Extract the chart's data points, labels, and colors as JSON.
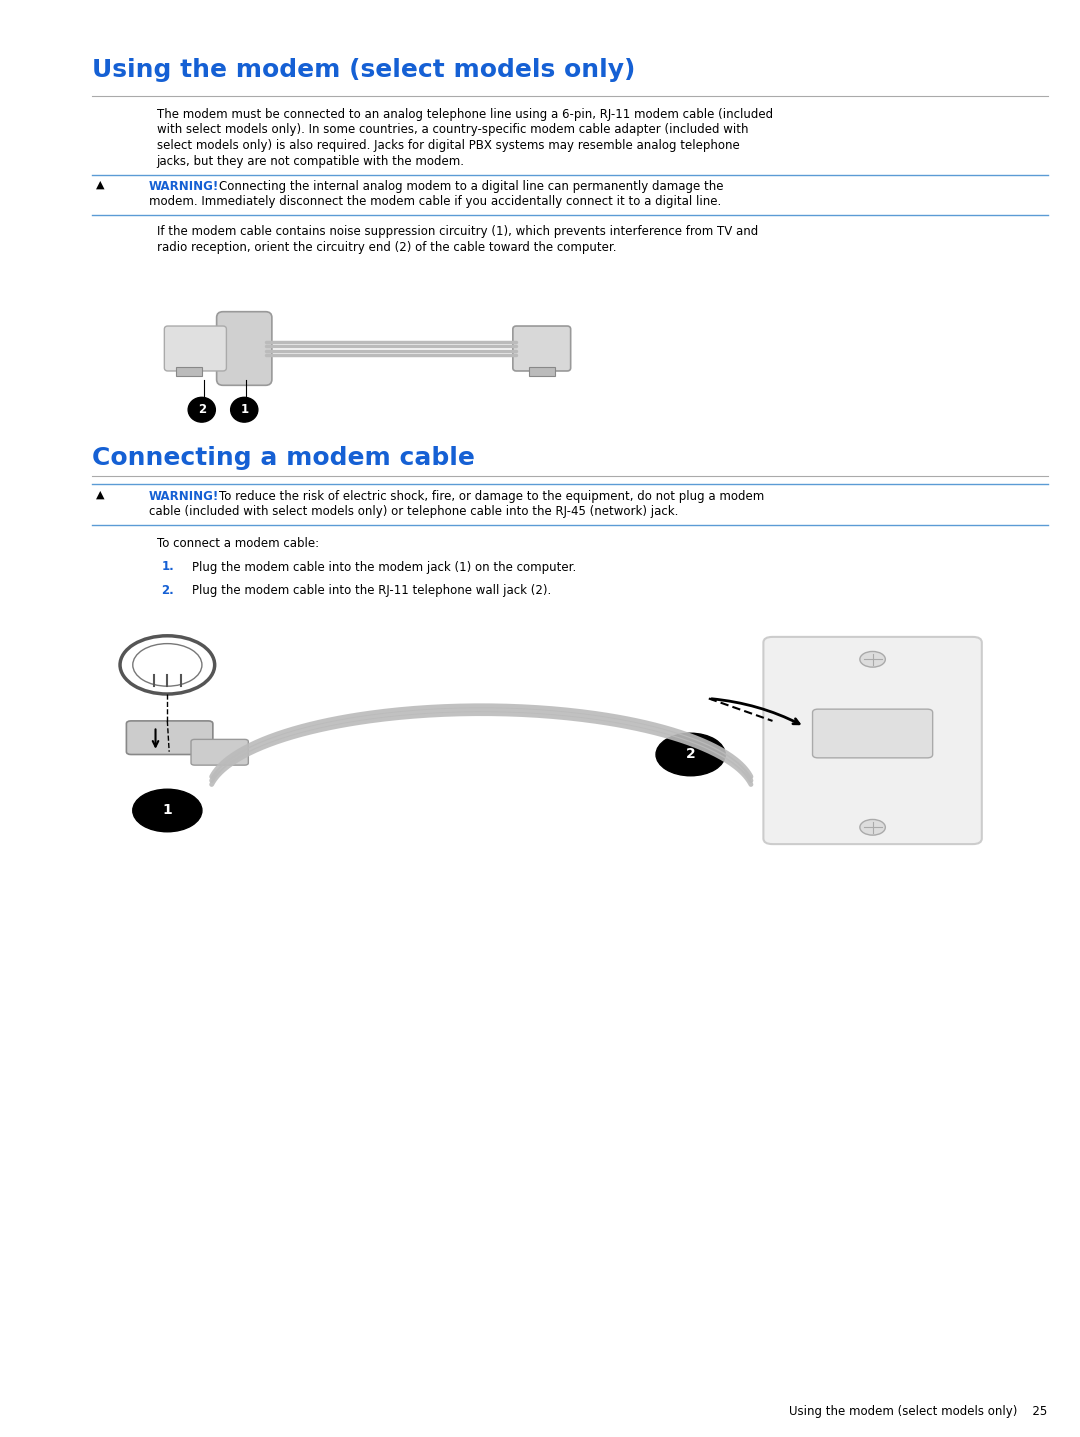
{
  "title1": "Using the modem (select models only)",
  "title2": "Connecting a modem cable",
  "title_color": "#1560D4",
  "title_fontsize": 18,
  "body_fontsize": 9.5,
  "small_fontsize": 8.5,
  "warning_color": "#1560D4",
  "black": "#000000",
  "bg_color": "#ffffff",
  "para1_lines": [
    "The modem must be connected to an analog telephone line using a 6-pin, RJ-11 modem cable (included",
    "with select models only). In some countries, a country-specific modem cable adapter (included with",
    "select models only) is also required. Jacks for digital PBX systems may resemble analog telephone",
    "jacks, but they are not compatible with the modem."
  ],
  "warning1_label": "WARNING!",
  "warning1_lines": [
    "Connecting the internal analog modem to a digital line can permanently damage the",
    "modem. Immediately disconnect the modem cable if you accidentally connect it to a digital line."
  ],
  "para2_lines": [
    "If the modem cable contains noise suppression circuitry (1), which prevents interference from TV and",
    "radio reception, orient the circuitry end (2) of the cable toward the computer."
  ],
  "warning2_label": "WARNING!",
  "warning2_lines": [
    "To reduce the risk of electric shock, fire, or damage to the equipment, do not plug a modem",
    "cable (included with select models only) or telephone cable into the RJ-45 (network) jack."
  ],
  "para3": "To connect a modem cable:",
  "step1_num": "1.",
  "step1_text": "Plug the modem cable into the modem jack (1) on the computer.",
  "step2_num": "2.",
  "step2_text": "Plug the modem cable into the RJ-11 telephone wall jack (2).",
  "footer_text": "Using the modem (select models only)    25",
  "lm": 0.085,
  "im": 0.145
}
